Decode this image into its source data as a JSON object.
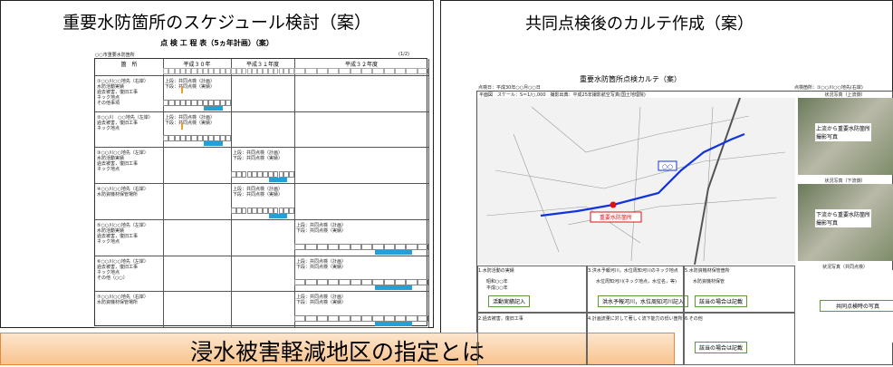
{
  "left": {
    "title": "重要水防箇所のスケジュール検討（案）",
    "subtitle": "点 検 工 程 表（5ヵ年計画）（案）",
    "org": "○○市重要水防箇所",
    "page": "(1/2)",
    "columns": [
      "箇　所",
      "平成３０年",
      "平成３１年度",
      "平成３２年度"
    ],
    "plan": "上段：共同点検（計画）",
    "actual": "下段：共同点検（実績）",
    "rows": [
      {
        "lines": [
          "①○○川○○地先（右岸）",
          "水防活動実績",
          "過去被害，復旧工事",
          "ネック地点",
          "その他事項"
        ],
        "col": 1
      },
      {
        "lines": [
          "②○○川　○○地先（左岸）",
          "過去被害，復旧工事",
          "ネック地点"
        ],
        "col": 1
      },
      {
        "lines": [
          "③○○川○○地先（左岸）",
          "水防活動実績",
          "過去被害，復旧工事",
          "ネック地点"
        ],
        "col": 2
      },
      {
        "lines": [
          "④○○川○○地先（右岸）",
          "水防資機材保管場所"
        ],
        "col": 2
      },
      {
        "lines": [
          "⑤○○川○○地先（左岸）",
          "水防活動実績",
          "過去被害，復旧工事",
          "ネック地点"
        ],
        "col": 3
      },
      {
        "lines": [
          "⑥○○川○○地先（左岸）",
          "過去被害，復旧工事",
          "ネック地点",
          "その他（○○）"
        ],
        "col": 3
      },
      {
        "lines": [
          "⑦○○川○○地先（右岸）",
          "水防資機材保管場所"
        ],
        "col": 3
      }
    ]
  },
  "right": {
    "title": "共同点検後のカルテ作成（案）",
    "doc_title": "重要水防箇所点検カルテ（案）",
    "date": "点検日：平成30年○○月○○日",
    "place": "点検箇所：①○○川○○地先(右岸)",
    "map_header": "平面図　スケール：S＝1/○,000　撮影出典：平成25年撮影航空写真(国土地理院)",
    "map_label": "重要水防箇所",
    "map_box": "○○",
    "photos": [
      {
        "caption": "状況写真（上流側）",
        "text": "上流から重要水防箇所撮影写真"
      },
      {
        "caption": "状況写真（下流側）",
        "text": "下流から重要水防箇所撮影写真"
      },
      {
        "caption": "状況写真（共同点検）",
        "text": "共同点検時の写真"
      }
    ],
    "sections": [
      {
        "title": "1.水防活動の実績",
        "notes": [
          "昭和○○年",
          "平成○○年"
        ],
        "button": "活動実績記入"
      },
      {
        "title": "3.洪水予報河川，水位周知河川のネック地点",
        "notes": [
          "水位周知河川(ネック地点，水位名，等)"
        ],
        "button": "洪水予報河川，水位周知河川記入"
      },
      {
        "title": "5.水防資機材保管箇所",
        "notes": [
          "水防資機材保管"
        ],
        "button": "該当の場合は記載"
      }
    ],
    "sections2": [
      {
        "title": "2.過去被害，復旧工事"
      },
      {
        "title": "4.計画流量に対して著しく流下能力の低い箇所"
      },
      {
        "title": "6.その他",
        "button": "該当の場合は記載"
      }
    ]
  },
  "banner": {
    "title": "浸水被害軽減地区の指定とは"
  }
}
